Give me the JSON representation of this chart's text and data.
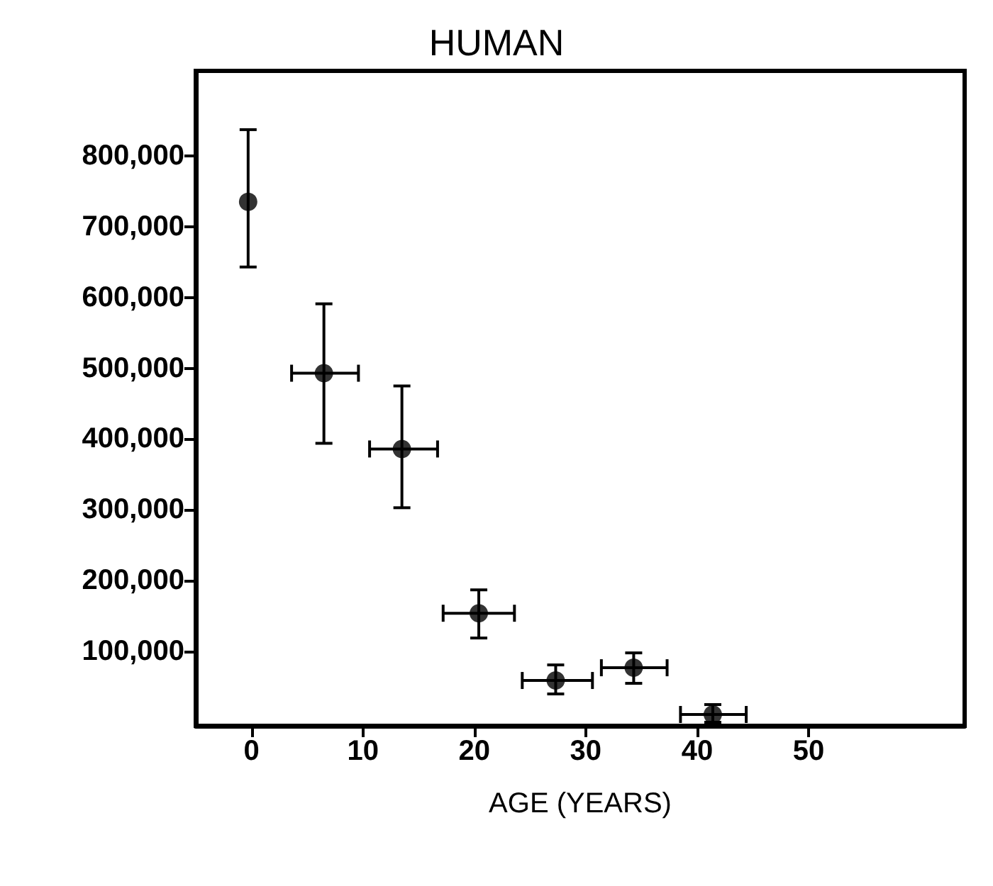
{
  "chart_data": {
    "type": "scatter",
    "title": "HUMAN",
    "xlabel": "AGE (YEARS)",
    "x": [
      -0.3,
      6.5,
      13.5,
      20.4,
      27.3,
      34.3,
      41.4
    ],
    "values": [
      735000,
      493000,
      386000,
      154000,
      59000,
      77000,
      11000
    ],
    "errors": [
      [
        643000,
        837000
      ],
      [
        394000,
        591000
      ],
      [
        303000,
        475000
      ],
      [
        119000,
        187000
      ],
      [
        40000,
        81000
      ],
      [
        55000,
        98000
      ],
      [
        0,
        25000
      ]
    ],
    "xerrors": [
      null,
      [
        3.6,
        9.6
      ],
      [
        10.6,
        16.7
      ],
      [
        17.2,
        23.6
      ],
      [
        24.3,
        30.6
      ],
      [
        31.4,
        37.3
      ],
      [
        38.5,
        44.4
      ]
    ],
    "color": "#000000",
    "marker": "circle",
    "grid": false,
    "xlim": [
      -5,
      64
    ],
    "xticks": [
      0,
      10,
      20,
      30,
      40,
      50
    ],
    "ylim": [
      -5000,
      920000
    ],
    "yticks": [
      {
        "value": 100000,
        "label": "100,000"
      },
      {
        "value": 200000,
        "label": "200,000"
      },
      {
        "value": 300000,
        "label": "300,000"
      },
      {
        "value": 400000,
        "label": "400,000"
      },
      {
        "value": 500000,
        "label": "500,000"
      },
      {
        "value": 600000,
        "label": "600,000"
      },
      {
        "value": 700000,
        "label": "700,000"
      },
      {
        "value": 800000,
        "label": "800,000"
      }
    ]
  }
}
